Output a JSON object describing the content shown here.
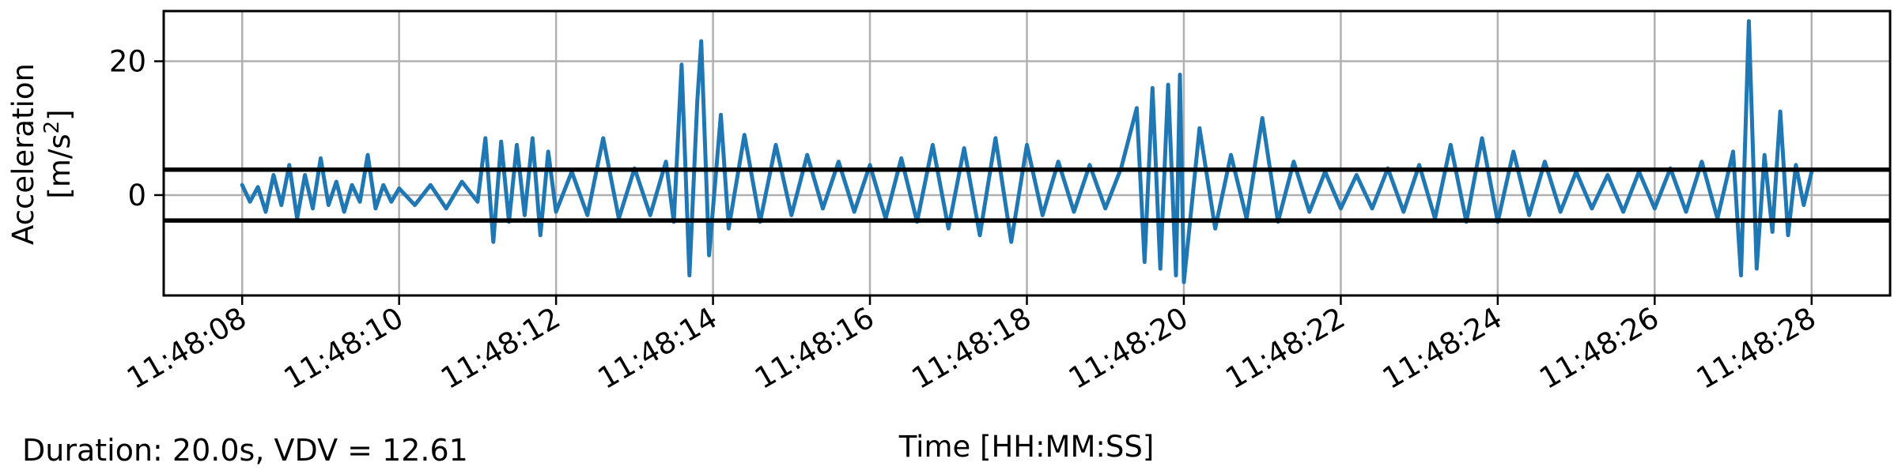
{
  "chart_data": {
    "type": "line",
    "xlabel": "Time [HH:MM:SS]",
    "ylabel_line1": "Acceleration",
    "ylabel_line2_prefix": "[m/s",
    "ylabel_superscript": "2",
    "ylabel_line2_suffix": "]",
    "x_ticks": [
      "11:48:08",
      "11:48:10",
      "11:48:12",
      "11:48:14",
      "11:48:16",
      "11:48:18",
      "11:48:20",
      "11:48:22",
      "11:48:24",
      "11:48:26",
      "11:48:28"
    ],
    "y_ticks": [
      "0",
      "20"
    ],
    "y_tick_values": [
      0,
      20
    ],
    "xlim_seconds_after_11_48_00": [
      7.0,
      29.0
    ],
    "ylim": [
      -15,
      27.5
    ],
    "grid": true,
    "line_color": "#1f77b4",
    "threshold_color": "#000000",
    "thresholds": [
      3.8,
      -3.8
    ],
    "series": [
      {
        "x_start": "11:48:08",
        "x_end": "11:48:28",
        "points": [
          [
            8.0,
            1.5
          ],
          [
            8.1,
            -1.0
          ],
          [
            8.2,
            1.2
          ],
          [
            8.3,
            -2.5
          ],
          [
            8.4,
            3.0
          ],
          [
            8.5,
            -1.5
          ],
          [
            8.6,
            4.5
          ],
          [
            8.7,
            -3.5
          ],
          [
            8.8,
            3.0
          ],
          [
            8.9,
            -2.0
          ],
          [
            9.0,
            5.5
          ],
          [
            9.1,
            -1.5
          ],
          [
            9.2,
            2.0
          ],
          [
            9.3,
            -2.5
          ],
          [
            9.4,
            1.5
          ],
          [
            9.5,
            -1.0
          ],
          [
            9.6,
            6.0
          ],
          [
            9.7,
            -2.0
          ],
          [
            9.8,
            1.5
          ],
          [
            9.9,
            -1.0
          ],
          [
            10.0,
            1.0
          ],
          [
            10.2,
            -1.5
          ],
          [
            10.4,
            1.5
          ],
          [
            10.6,
            -2.0
          ],
          [
            10.8,
            2.0
          ],
          [
            11.0,
            -1.0
          ],
          [
            11.1,
            8.5
          ],
          [
            11.2,
            -7.0
          ],
          [
            11.3,
            8.0
          ],
          [
            11.4,
            -4.0
          ],
          [
            11.5,
            7.5
          ],
          [
            11.6,
            -3.0
          ],
          [
            11.7,
            8.5
          ],
          [
            11.8,
            -6.0
          ],
          [
            11.9,
            6.5
          ],
          [
            12.0,
            -2.5
          ],
          [
            12.2,
            3.5
          ],
          [
            12.4,
            -3.0
          ],
          [
            12.6,
            8.5
          ],
          [
            12.8,
            -3.5
          ],
          [
            13.0,
            4.0
          ],
          [
            13.2,
            -3.0
          ],
          [
            13.4,
            5.0
          ],
          [
            13.5,
            -4.0
          ],
          [
            13.6,
            19.5
          ],
          [
            13.7,
            -12.0
          ],
          [
            13.8,
            14.0
          ],
          [
            13.85,
            23.0
          ],
          [
            13.95,
            -9.0
          ],
          [
            14.1,
            12.0
          ],
          [
            14.2,
            -5.0
          ],
          [
            14.4,
            9.0
          ],
          [
            14.6,
            -4.0
          ],
          [
            14.8,
            7.5
          ],
          [
            15.0,
            -3.0
          ],
          [
            15.2,
            6.0
          ],
          [
            15.4,
            -2.0
          ],
          [
            15.6,
            5.0
          ],
          [
            15.8,
            -2.5
          ],
          [
            16.0,
            4.5
          ],
          [
            16.2,
            -3.5
          ],
          [
            16.4,
            5.5
          ],
          [
            16.6,
            -4.0
          ],
          [
            16.8,
            7.5
          ],
          [
            17.0,
            -5.0
          ],
          [
            17.2,
            7.0
          ],
          [
            17.4,
            -6.0
          ],
          [
            17.6,
            8.5
          ],
          [
            17.8,
            -7.0
          ],
          [
            18.0,
            7.5
          ],
          [
            18.2,
            -3.0
          ],
          [
            18.4,
            5.0
          ],
          [
            18.6,
            -2.5
          ],
          [
            18.8,
            4.5
          ],
          [
            19.0,
            -2.0
          ],
          [
            19.2,
            4.0
          ],
          [
            19.4,
            13.0
          ],
          [
            19.5,
            -10.0
          ],
          [
            19.6,
            16.0
          ],
          [
            19.7,
            -11.0
          ],
          [
            19.8,
            16.5
          ],
          [
            19.9,
            -12.0
          ],
          [
            19.95,
            18.0
          ],
          [
            20.0,
            -13.0
          ],
          [
            20.2,
            10.0
          ],
          [
            20.4,
            -5.0
          ],
          [
            20.6,
            6.0
          ],
          [
            20.8,
            -3.5
          ],
          [
            21.0,
            11.5
          ],
          [
            21.2,
            -4.0
          ],
          [
            21.4,
            5.0
          ],
          [
            21.6,
            -2.5
          ],
          [
            21.8,
            3.5
          ],
          [
            22.0,
            -2.0
          ],
          [
            22.2,
            3.0
          ],
          [
            22.4,
            -2.0
          ],
          [
            22.6,
            4.0
          ],
          [
            22.8,
            -2.5
          ],
          [
            23.0,
            4.5
          ],
          [
            23.2,
            -3.5
          ],
          [
            23.4,
            7.5
          ],
          [
            23.6,
            -4.0
          ],
          [
            23.8,
            8.5
          ],
          [
            24.0,
            -4.0
          ],
          [
            24.2,
            6.5
          ],
          [
            24.4,
            -3.0
          ],
          [
            24.6,
            5.0
          ],
          [
            24.8,
            -2.5
          ],
          [
            25.0,
            3.5
          ],
          [
            25.2,
            -2.0
          ],
          [
            25.4,
            3.0
          ],
          [
            25.6,
            -2.5
          ],
          [
            25.8,
            3.5
          ],
          [
            26.0,
            -2.0
          ],
          [
            26.2,
            4.0
          ],
          [
            26.4,
            -2.5
          ],
          [
            26.6,
            5.0
          ],
          [
            26.8,
            -3.5
          ],
          [
            27.0,
            6.5
          ],
          [
            27.1,
            -12.0
          ],
          [
            27.2,
            26.0
          ],
          [
            27.3,
            -11.0
          ],
          [
            27.4,
            6.0
          ],
          [
            27.5,
            -5.5
          ],
          [
            27.6,
            12.5
          ],
          [
            27.7,
            -6.0
          ],
          [
            27.8,
            4.5
          ],
          [
            27.9,
            -1.5
          ],
          [
            28.0,
            3.5
          ]
        ]
      }
    ]
  },
  "footer": {
    "summary": "Duration: 20.0s, VDV = 12.61"
  }
}
